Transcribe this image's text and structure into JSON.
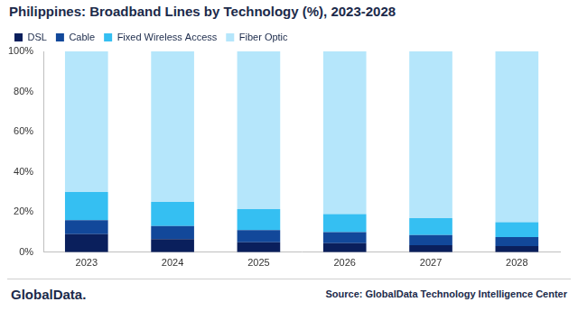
{
  "chart_data": {
    "type": "bar",
    "title": "Philippines: Broadband Lines by Technology (%), 2023-2028",
    "categories": [
      "2023",
      "2024",
      "2025",
      "2026",
      "2027",
      "2028"
    ],
    "series": [
      {
        "name": "DSL",
        "color": "#0a1f5c",
        "values": [
          9,
          6.5,
          5,
          4.5,
          3.5,
          3
        ]
      },
      {
        "name": "Cable",
        "color": "#12489a",
        "values": [
          7,
          6.5,
          6,
          5.5,
          5,
          4.5
        ]
      },
      {
        "name": "Fixed Wireless Access",
        "color": "#35bff2",
        "values": [
          14,
          12,
          10.5,
          9,
          8.5,
          7.5
        ]
      },
      {
        "name": "Fiber Optic",
        "color": "#b5e6fb",
        "values": [
          70,
          75,
          78.5,
          81,
          83,
          85
        ]
      }
    ],
    "ylim": [
      0,
      100
    ],
    "yticks": [
      {
        "value": 0,
        "label": "0%"
      },
      {
        "value": 20,
        "label": "20%"
      },
      {
        "value": 40,
        "label": "40%"
      },
      {
        "value": 60,
        "label": "60%"
      },
      {
        "value": 80,
        "label": "80%"
      },
      {
        "value": 100,
        "label": "100%"
      }
    ],
    "stacked": true,
    "grid": false,
    "legend": "top-left",
    "brand": "GlobalData.",
    "source": "Source: GlobalData Technology Intelligence Center"
  }
}
